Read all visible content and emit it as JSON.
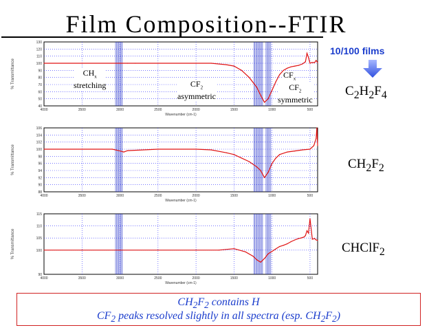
{
  "slide": {
    "title": "Film Composition--FTIR",
    "films_label": "10/100 films",
    "note_line1": "CH2F2 contains H",
    "note_line2": "CF2 peaks resolved slightly in all spectra (esp. CH2F2)"
  },
  "colors": {
    "trace": "#e01010",
    "band": "#1a28c8",
    "grid": "#2020ff",
    "accent": "#1a3ccc"
  },
  "icons": {
    "arrow": "down-arrow-icon"
  },
  "annotations": {
    "ch_stretching_1": "CH",
    "ch_stretching_2": "stretching",
    "cf2_asym_1": "CF",
    "cf2_asym_2": "asymmetric",
    "cf_right": "CF",
    "cf2_sym_1": "CF",
    "cf2_sym_2": "symmetric"
  },
  "chart_data": [
    {
      "type": "line",
      "formula": "C2H2F4",
      "ylabel": "% Transmittance",
      "xlabel": "Wavenumber (cm-1)",
      "xlim": [
        4000,
        400
      ],
      "ylim": [
        40,
        130
      ],
      "xticks": [
        "4000",
        "3500",
        "3000",
        "2500",
        "2000",
        "1500",
        "1000",
        "500"
      ],
      "yticks": [
        "40",
        "50",
        "60",
        "70",
        "80",
        "90",
        "100",
        "110",
        "120",
        "130"
      ],
      "x": [
        4000,
        3500,
        3000,
        2900,
        2800,
        2500,
        2000,
        1800,
        1600,
        1500,
        1400,
        1300,
        1200,
        1150,
        1100,
        1050,
        1000,
        950,
        900,
        850,
        800,
        750,
        700,
        650,
        600,
        560,
        540,
        520,
        500,
        480,
        460,
        440,
        420,
        400
      ],
      "y": [
        100,
        100,
        100,
        100,
        100,
        100,
        100,
        100,
        98,
        96,
        90,
        80,
        66,
        55,
        45,
        50,
        62,
        74,
        84,
        90,
        93,
        95,
        96,
        97,
        99,
        102,
        114,
        108,
        100,
        101,
        101,
        101,
        104,
        101
      ]
    },
    {
      "type": "line",
      "formula": "CH2F2",
      "ylabel": "% Transmittance",
      "xlabel": "Wavenumber (cm-1)",
      "xlim": [
        4000,
        400
      ],
      "ylim": [
        88,
        106
      ],
      "xticks": [
        "4000",
        "3500",
        "3000",
        "2500",
        "2000",
        "1500",
        "1000",
        "500"
      ],
      "yticks": [
        "88",
        "90",
        "92",
        "94",
        "96",
        "98",
        "100",
        "102",
        "104",
        "106"
      ],
      "x": [
        4000,
        3500,
        3100,
        3000,
        2950,
        2900,
        2500,
        2000,
        1800,
        1600,
        1500,
        1400,
        1300,
        1200,
        1150,
        1100,
        1050,
        1000,
        950,
        900,
        800,
        700,
        600,
        500,
        450,
        420,
        410,
        400
      ],
      "y": [
        100,
        100,
        100,
        99.5,
        99.2,
        99.6,
        100,
        100,
        99.8,
        99,
        98.5,
        97.5,
        96.5,
        95,
        94,
        92,
        93.5,
        96,
        97.5,
        98.5,
        99.2,
        99.5,
        99.8,
        100,
        101,
        103,
        106,
        101
      ]
    },
    {
      "type": "line",
      "formula": "CHClF2",
      "ylabel": "% Transmittance",
      "xlabel": "Wavenumber (cm-1)",
      "xlim": [
        4000,
        400
      ],
      "ylim": [
        90,
        115
      ],
      "xticks": [
        "4000",
        "3500",
        "3000",
        "2500",
        "2000",
        "1500",
        "1000",
        "500"
      ],
      "yticks": [
        "90",
        "100",
        "105",
        "110",
        "115"
      ],
      "x": [
        4000,
        3500,
        3000,
        2500,
        2000,
        1700,
        1500,
        1350,
        1250,
        1200,
        1150,
        1100,
        1050,
        1000,
        950,
        900,
        850,
        800,
        750,
        700,
        650,
        620,
        600,
        580,
        560,
        540,
        520,
        500,
        470,
        440,
        420,
        400
      ],
      "y": [
        100,
        100,
        100,
        100,
        100,
        100,
        100.6,
        99.3,
        97.5,
        96,
        95,
        96.5,
        98.5,
        99.5,
        100.5,
        101.5,
        102,
        102.6,
        103.5,
        104.2,
        104.8,
        105,
        105.2,
        105.4,
        106,
        108,
        107,
        113,
        104.5,
        104.8,
        104.2,
        104
      ]
    }
  ]
}
